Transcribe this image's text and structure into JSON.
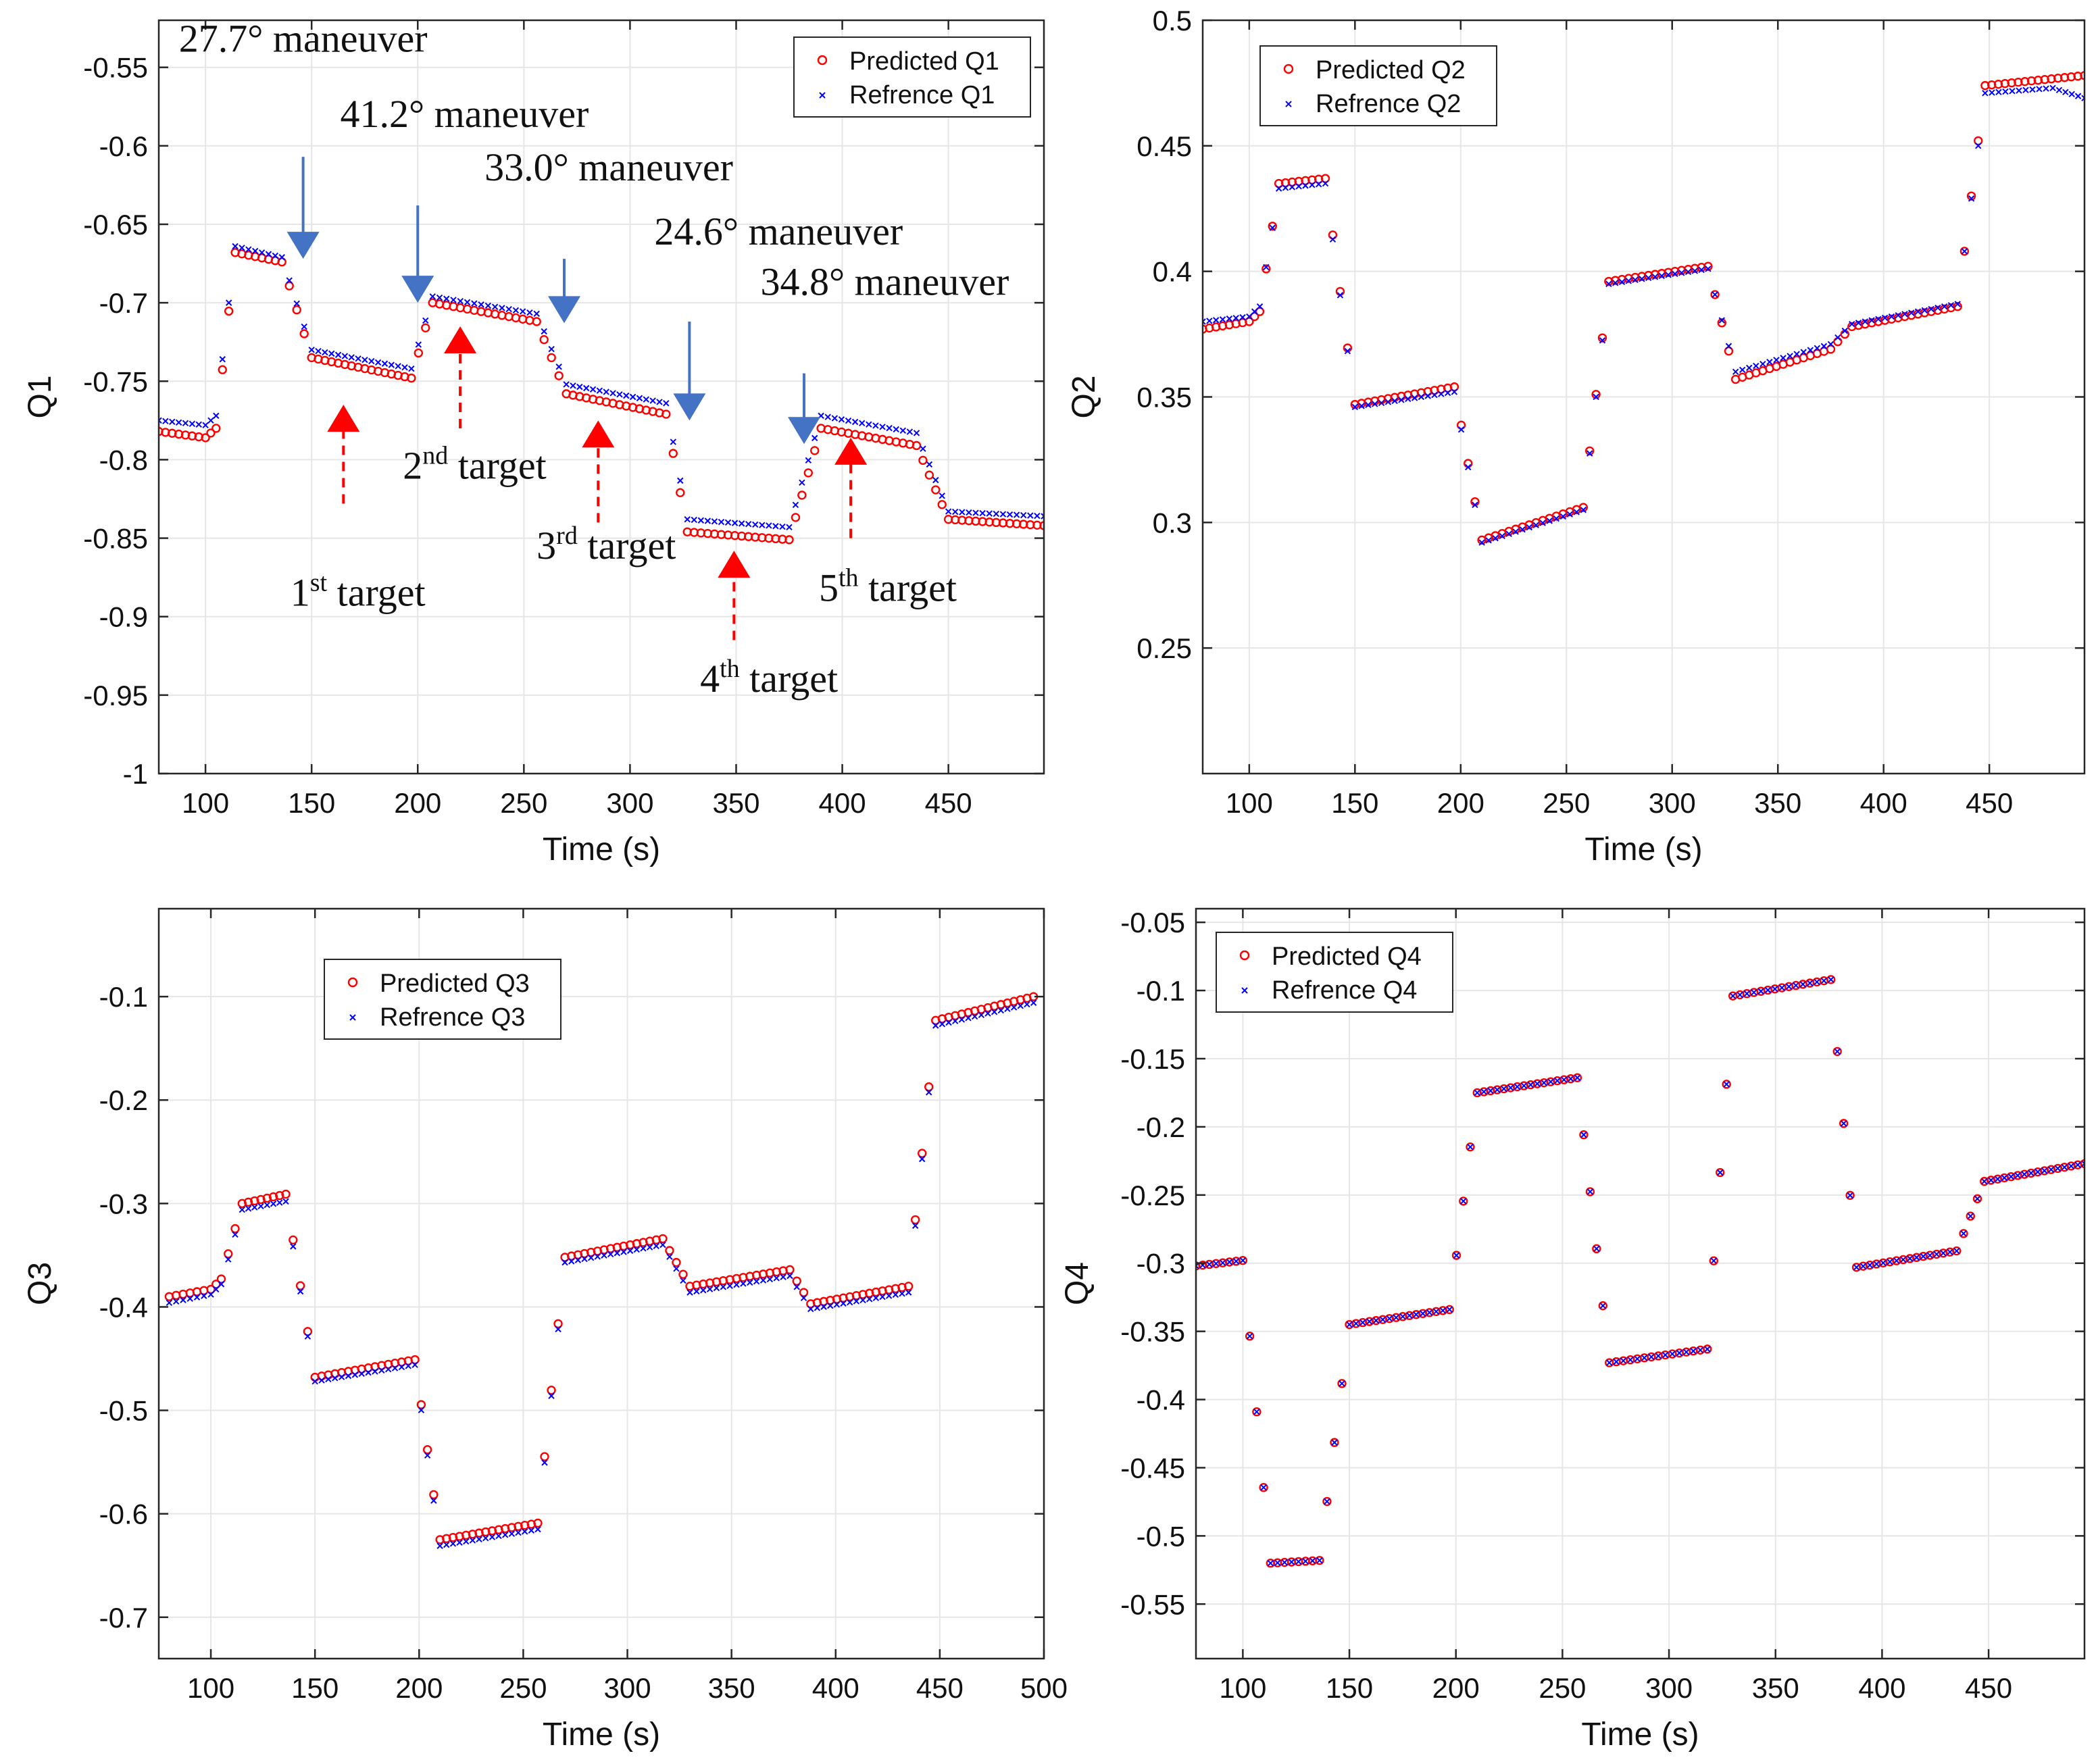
{
  "chart_data": [
    {
      "id": "q1",
      "type": "scatter",
      "title": "",
      "xlabel": "Time (s)",
      "ylabel": "Q1",
      "xlim": [
        78,
        495
      ],
      "ylim": [
        -1,
        -0.52
      ],
      "xticks": [
        100,
        150,
        200,
        250,
        300,
        350,
        400,
        450
      ],
      "xtick_labels": [
        "100",
        "150",
        "200",
        "250",
        "300",
        "350",
        "400",
        "450"
      ],
      "yticks": [
        -0.55,
        -0.6,
        -0.65,
        -0.7,
        -0.75,
        -0.8,
        -0.85,
        -0.9,
        -0.95,
        -1
      ],
      "ytick_labels": [
        "-0.55",
        "-0.6",
        "-0.65",
        "-0.7",
        "-0.75",
        "-0.8",
        "-0.85",
        "-0.9",
        "-0.95",
        "-1"
      ],
      "legend": [
        "Predicted Q1",
        "Refrence Q1"
      ],
      "legend_position": "top-right",
      "grid": true,
      "series": [
        {
          "name": "Predicted Q1",
          "marker": "circle",
          "color": "#ff0000",
          "points": [
            [
              78,
              -0.782
            ],
            [
              100,
              -0.786
            ],
            [
              105,
              -0.78
            ],
            [
              114,
              -0.668
            ],
            [
              136,
              -0.674
            ],
            [
              150,
              -0.735
            ],
            [
              197,
              -0.748
            ],
            [
              207,
              -0.7
            ],
            [
              256,
              -0.712
            ],
            [
              270,
              -0.758
            ],
            [
              317,
              -0.771
            ],
            [
              327,
              -0.846
            ],
            [
              375,
              -0.851
            ],
            [
              390,
              -0.78
            ],
            [
              435,
              -0.791
            ],
            [
              450,
              -0.838
            ],
            [
              495,
              -0.842
            ]
          ]
        },
        {
          "name": "Refrence Q1",
          "marker": "x",
          "color": "#0000ff",
          "points": [
            [
              78,
              -0.775
            ],
            [
              100,
              -0.778
            ],
            [
              105,
              -0.772
            ],
            [
              114,
              -0.664
            ],
            [
              136,
              -0.671
            ],
            [
              150,
              -0.73
            ],
            [
              197,
              -0.742
            ],
            [
              207,
              -0.696
            ],
            [
              256,
              -0.707
            ],
            [
              270,
              -0.752
            ],
            [
              317,
              -0.764
            ],
            [
              327,
              -0.838
            ],
            [
              375,
              -0.843
            ],
            [
              390,
              -0.772
            ],
            [
              435,
              -0.783
            ],
            [
              450,
              -0.833
            ],
            [
              495,
              -0.836
            ]
          ]
        }
      ],
      "annotations": [
        {
          "text": "27.7° maneuver",
          "x": 146,
          "y": -0.54,
          "arrow": "down-blue",
          "ax": 146,
          "ay0": -0.607,
          "ay1": -0.672
        },
        {
          "text": "41.2° maneuver",
          "x": 222,
          "y": -0.588,
          "arrow": "down-blue",
          "ax": 200,
          "ay0": -0.638,
          "ay1": -0.7
        },
        {
          "text": "33.0° maneuver",
          "x": 290,
          "y": -0.622,
          "arrow": "down-blue",
          "ax": 269,
          "ay0": -0.672,
          "ay1": -0.713
        },
        {
          "text": "24.6° maneuver",
          "x": 370,
          "y": -0.663,
          "arrow": "down-blue",
          "ax": 328,
          "ay0": -0.712,
          "ay1": -0.775
        },
        {
          "text": "34.8° maneuver",
          "x": 420,
          "y": -0.695,
          "arrow": "down-blue",
          "ax": 382,
          "ay0": -0.745,
          "ay1": -0.79
        },
        {
          "sup_base": "1",
          "sup": "st",
          "rest": " target",
          "x": 140,
          "y": -0.893,
          "arrow": "up-red",
          "ax": 165,
          "ay0": -0.828,
          "ay1": -0.765
        },
        {
          "sup_base": "2",
          "sup": "nd",
          "rest": " target",
          "x": 193,
          "y": -0.812,
          "arrow": "up-red",
          "ax": 220,
          "ay0": -0.78,
          "ay1": -0.715
        },
        {
          "sup_base": "3",
          "sup": "rd",
          "rest": " target",
          "x": 256,
          "y": -0.863,
          "arrow": "up-red",
          "ax": 285,
          "ay0": -0.84,
          "ay1": -0.775
        },
        {
          "sup_base": "4",
          "sup": "th",
          "rest": " target",
          "x": 333,
          "y": -0.948,
          "arrow": "up-red",
          "ax": 349,
          "ay0": -0.915,
          "ay1": -0.858
        },
        {
          "sup_base": "5",
          "sup": "th",
          "rest": " target",
          "x": 389,
          "y": -0.89,
          "arrow": "up-red",
          "ax": 404,
          "ay0": -0.85,
          "ay1": -0.786
        }
      ]
    },
    {
      "id": "q2",
      "type": "scatter",
      "title": "",
      "xlabel": "Time (s)",
      "ylabel": "Q2",
      "xlim": [
        78,
        495
      ],
      "ylim": [
        0.2,
        0.5
      ],
      "xticks": [
        100,
        150,
        200,
        250,
        300,
        350,
        400,
        450
      ],
      "xtick_labels": [
        "100",
        "150",
        "200",
        "250",
        "300",
        "350",
        "400",
        "450"
      ],
      "yticks": [
        0.25,
        0.3,
        0.35,
        0.4,
        0.45,
        0.5
      ],
      "ytick_labels": [
        "0.25",
        "0.3",
        "0.35",
        "0.4",
        "0.45",
        "0.5"
      ],
      "legend": [
        "Predicted Q2",
        "Refrence Q2"
      ],
      "legend_position": "top-left",
      "grid": true,
      "series": [
        {
          "name": "Predicted Q2",
          "marker": "circle",
          "color": "#ff0000",
          "points": [
            [
              78,
              0.377
            ],
            [
              100,
              0.38
            ],
            [
              105,
              0.384
            ],
            [
              114,
              0.435
            ],
            [
              136,
              0.437
            ],
            [
              150,
              0.347
            ],
            [
              197,
              0.354
            ],
            [
              210,
              0.293
            ],
            [
              258,
              0.306
            ],
            [
              270,
              0.396
            ],
            [
              317,
              0.402
            ],
            [
              330,
              0.357
            ],
            [
              375,
              0.369
            ],
            [
              385,
              0.378
            ],
            [
              435,
              0.386
            ],
            [
              448,
              0.474
            ],
            [
              495,
              0.478
            ]
          ]
        },
        {
          "name": "Refrence Q2",
          "marker": "x",
          "color": "#0000ff",
          "points": [
            [
              78,
              0.38
            ],
            [
              100,
              0.382
            ],
            [
              105,
              0.386
            ],
            [
              114,
              0.433
            ],
            [
              136,
              0.435
            ],
            [
              150,
              0.346
            ],
            [
              197,
              0.352
            ],
            [
              210,
              0.292
            ],
            [
              258,
              0.305
            ],
            [
              270,
              0.395
            ],
            [
              317,
              0.401
            ],
            [
              330,
              0.36
            ],
            [
              375,
              0.371
            ],
            [
              385,
              0.379
            ],
            [
              435,
              0.387
            ],
            [
              448,
              0.471
            ],
            [
              480,
              0.473
            ],
            [
              495,
              0.469
            ]
          ]
        }
      ]
    },
    {
      "id": "q3",
      "type": "scatter",
      "title": "",
      "xlabel": "Time (s)",
      "ylabel": "Q3",
      "xlim": [
        75,
        500
      ],
      "ylim": [
        -0.74,
        -0.015
      ],
      "xticks": [
        100,
        150,
        200,
        250,
        300,
        350,
        400,
        450,
        500
      ],
      "xtick_labels": [
        "100",
        "150",
        "200",
        "250",
        "300",
        "350",
        "400",
        "450",
        "500"
      ],
      "yticks": [
        -0.1,
        -0.2,
        -0.3,
        -0.4,
        -0.5,
        -0.6,
        -0.7
      ],
      "ytick_labels": [
        "-0.1",
        "-0.2",
        "-0.3",
        "-0.4",
        "-0.5",
        "-0.6",
        "-0.7"
      ],
      "legend": [
        "Predicted Q3",
        "Refrence Q3"
      ],
      "legend_position": "top-left",
      "grid": true,
      "series": [
        {
          "name": "Predicted Q3",
          "marker": "circle",
          "color": "#ff0000",
          "points": [
            [
              80,
              -0.39
            ],
            [
              100,
              -0.383
            ],
            [
              105,
              -0.373
            ],
            [
              115,
              -0.3
            ],
            [
              136,
              -0.291
            ],
            [
              150,
              -0.468
            ],
            [
              198,
              -0.451
            ],
            [
              210,
              -0.625
            ],
            [
              257,
              -0.609
            ],
            [
              270,
              -0.352
            ],
            [
              317,
              -0.334
            ],
            [
              330,
              -0.38
            ],
            [
              378,
              -0.364
            ],
            [
              388,
              -0.397
            ],
            [
              435,
              -0.38
            ],
            [
              448,
              -0.123
            ],
            [
              495,
              -0.1
            ]
          ]
        },
        {
          "name": "Refrence Q3",
          "marker": "x",
          "color": "#0000ff",
          "points": [
            [
              80,
              -0.396
            ],
            [
              100,
              -0.388
            ],
            [
              105,
              -0.378
            ],
            [
              115,
              -0.306
            ],
            [
              136,
              -0.298
            ],
            [
              150,
              -0.472
            ],
            [
              198,
              -0.456
            ],
            [
              210,
              -0.631
            ],
            [
              257,
              -0.615
            ],
            [
              270,
              -0.357
            ],
            [
              317,
              -0.34
            ],
            [
              330,
              -0.386
            ],
            [
              378,
              -0.37
            ],
            [
              388,
              -0.402
            ],
            [
              435,
              -0.386
            ],
            [
              448,
              -0.128
            ],
            [
              495,
              -0.106
            ]
          ]
        }
      ]
    },
    {
      "id": "q4",
      "type": "scatter",
      "title": "",
      "xlabel": "Time (s)",
      "ylabel": "Q4",
      "xlim": [
        78,
        495
      ],
      "ylim": [
        -0.59,
        -0.04
      ],
      "xticks": [
        100,
        150,
        200,
        250,
        300,
        350,
        400,
        450
      ],
      "xtick_labels": [
        "100",
        "150",
        "200",
        "250",
        "300",
        "350",
        "400",
        "450"
      ],
      "yticks": [
        -0.05,
        -0.1,
        -0.15,
        -0.2,
        -0.25,
        -0.3,
        -0.35,
        -0.4,
        -0.45,
        -0.5,
        -0.55
      ],
      "ytick_labels": [
        "-0.05",
        "-0.1",
        "-0.15",
        "-0.2",
        "-0.25",
        "-0.3",
        "-0.35",
        "-0.4",
        "-0.45",
        "-0.5",
        "-0.55"
      ],
      "legend": [
        "Predicted Q4",
        "Refrence Q4"
      ],
      "legend_position": "top-left",
      "grid": true,
      "series": [
        {
          "name": "Predicted Q4",
          "marker": "circle",
          "color": "#ff0000",
          "points": [
            [
              78,
              -0.302
            ],
            [
              100,
              -0.298
            ],
            [
              113,
              -0.52
            ],
            [
              136,
              -0.518
            ],
            [
              150,
              -0.345
            ],
            [
              197,
              -0.334
            ],
            [
              210,
              -0.175
            ],
            [
              257,
              -0.164
            ],
            [
              272,
              -0.373
            ],
            [
              318,
              -0.363
            ],
            [
              330,
              -0.104
            ],
            [
              376,
              -0.092
            ],
            [
              388,
              -0.303
            ],
            [
              435,
              -0.291
            ],
            [
              448,
              -0.24
            ],
            [
              495,
              -0.227
            ]
          ]
        },
        {
          "name": "Refrence Q4",
          "marker": "x",
          "color": "#0000ff",
          "points": [
            [
              78,
              -0.302
            ],
            [
              100,
              -0.298
            ],
            [
              113,
              -0.52
            ],
            [
              136,
              -0.518
            ],
            [
              150,
              -0.345
            ],
            [
              197,
              -0.334
            ],
            [
              210,
              -0.175
            ],
            [
              257,
              -0.164
            ],
            [
              272,
              -0.373
            ],
            [
              318,
              -0.363
            ],
            [
              330,
              -0.104
            ],
            [
              376,
              -0.092
            ],
            [
              388,
              -0.303
            ],
            [
              435,
              -0.291
            ],
            [
              448,
              -0.24
            ],
            [
              495,
              -0.227
            ]
          ]
        }
      ]
    }
  ]
}
